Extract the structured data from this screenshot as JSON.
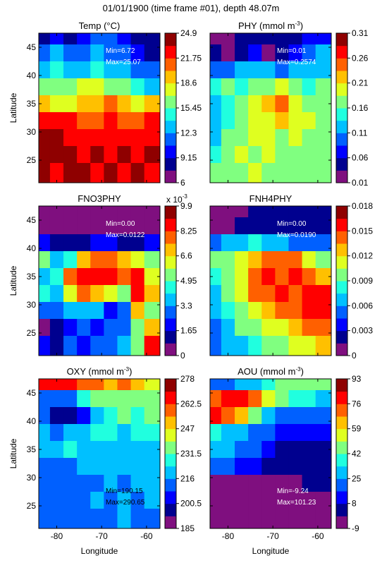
{
  "figure": {
    "title": "01/01/1900 (time frame #01), depth 48.07m",
    "xlabel": "Longitude",
    "ylabel": "Latitude"
  },
  "colors": {
    "colormap": [
      "#7f0f7f",
      "#00008f",
      "#0000ff",
      "#0060ff",
      "#00c0ff",
      "#20ffdf",
      "#80ff80",
      "#dfff20",
      "#ffc000",
      "#ff6000",
      "#ff0000",
      "#8f0000"
    ]
  },
  "chart_data": [
    {
      "type": "heatmap",
      "title": "Temp (°C)",
      "xlim": [
        -84,
        -57
      ],
      "ylim": [
        21,
        47.5
      ],
      "xticks": [
        "-80",
        "-70",
        "-60"
      ],
      "yticks": [
        "25",
        "30",
        "35",
        "40",
        "45"
      ],
      "colorbar": {
        "range": [
          6,
          24.9
        ],
        "ticks": [
          "24.9",
          "21.75",
          "18.6",
          "15.45",
          "12.3",
          "9.15",
          "6"
        ],
        "exponent": ""
      },
      "annotation": {
        "min": "Min=6.72",
        "max": "Max=25.07"
      },
      "grid_lat": [
        47,
        44,
        41,
        38,
        35,
        32,
        29,
        26,
        23
      ],
      "grid_lon": [
        -83,
        -80,
        -77,
        -74,
        -71,
        -68,
        -65,
        -62,
        -59
      ],
      "values": [
        [
          0.1,
          0.2,
          0.15,
          0.2,
          0.3,
          0.25,
          0.2,
          0.15,
          0.1
        ],
        [
          0.25,
          0.35,
          0.3,
          0.3,
          0.35,
          0.3,
          0.25,
          0.2,
          0.15
        ],
        [
          0.4,
          0.45,
          0.35,
          0.4,
          0.45,
          0.4,
          0.35,
          0.3,
          0.25
        ],
        [
          0.5,
          0.55,
          0.55,
          0.6,
          0.6,
          0.55,
          0.55,
          0.45,
          0.4
        ],
        [
          0.7,
          0.65,
          0.65,
          0.7,
          0.7,
          0.75,
          0.7,
          0.65,
          0.7
        ],
        [
          0.9,
          0.85,
          0.85,
          0.8,
          0.8,
          0.85,
          0.8,
          0.8,
          0.85
        ],
        [
          0.95,
          0.95,
          0.9,
          0.9,
          0.85,
          0.9,
          0.9,
          0.85,
          0.9
        ],
        [
          0.95,
          0.95,
          0.95,
          0.9,
          0.95,
          0.9,
          0.95,
          0.9,
          0.95
        ],
        [
          0.95,
          0.9,
          0.95,
          0.95,
          0.9,
          0.95,
          0.9,
          0.95,
          0.85
        ]
      ]
    },
    {
      "type": "heatmap",
      "title": "PHY (mmol m",
      "title_sup": "-3",
      "title_end": ")",
      "xlim": [
        -84,
        -57
      ],
      "ylim": [
        21,
        47.5
      ],
      "xticks": [
        "-80",
        "-70",
        "-60"
      ],
      "yticks": [
        "25",
        "30",
        "35",
        "40",
        "45"
      ],
      "colorbar": {
        "range": [
          0.01,
          0.31
        ],
        "ticks": [
          "0.31",
          "0.26",
          "0.21",
          "0.16",
          "0.11",
          "0.06",
          "0.01"
        ],
        "exponent": ""
      },
      "annotation": {
        "min": "Min=0.01",
        "max": "Max=0.2574"
      },
      "grid_lat": [
        47,
        44,
        41,
        38,
        35,
        32,
        29,
        26,
        23
      ],
      "grid_lon": [
        -83,
        -80,
        -77,
        -74,
        -71,
        -68,
        -65,
        -62,
        -59
      ],
      "values": [
        [
          0.05,
          0.05,
          0.1,
          0.15,
          0.1,
          0.1,
          0.15,
          0.2,
          0.2
        ],
        [
          0.1,
          0.05,
          0.1,
          0.2,
          0.05,
          0.1,
          0.2,
          0.3,
          0.35
        ],
        [
          0.25,
          0.3,
          0.35,
          0.4,
          0.35,
          0.3,
          0.35,
          0.4,
          0.35
        ],
        [
          0.45,
          0.5,
          0.45,
          0.5,
          0.55,
          0.6,
          0.55,
          0.45,
          0.5
        ],
        [
          0.4,
          0.45,
          0.55,
          0.6,
          0.7,
          0.75,
          0.65,
          0.55,
          0.5
        ],
        [
          0.35,
          0.45,
          0.55,
          0.6,
          0.65,
          0.7,
          0.65,
          0.6,
          0.55
        ],
        [
          0.4,
          0.5,
          0.55,
          0.6,
          0.6,
          0.55,
          0.6,
          0.55,
          0.5
        ],
        [
          0.45,
          0.55,
          0.6,
          0.55,
          0.6,
          0.55,
          0.5,
          0.55,
          0.5
        ],
        [
          0.5,
          0.55,
          0.55,
          0.6,
          0.55,
          0.5,
          0.55,
          0.5,
          0.55
        ]
      ]
    },
    {
      "type": "heatmap",
      "title": "FNO3PHY",
      "xlim": [
        -84,
        -57
      ],
      "ylim": [
        21,
        47.5
      ],
      "xticks": [
        "-80",
        "-70",
        "-60"
      ],
      "yticks": [
        "25",
        "30",
        "35",
        "40",
        "45"
      ],
      "colorbar": {
        "range": [
          0,
          9.9
        ],
        "ticks": [
          "9.9",
          "8.25",
          "6.6",
          "4.95",
          "3.3",
          "1.65",
          "0"
        ],
        "exponent": "x 10",
        "exponent_sup": "-3"
      },
      "annotation": {
        "min": "Min=0.00",
        "max": "Max=0.0122"
      },
      "grid_lat": [
        47,
        44,
        41,
        38,
        35,
        32,
        29,
        26,
        23
      ],
      "grid_lon": [
        -83,
        -80,
        -77,
        -74,
        -71,
        -68,
        -65,
        -62,
        -59
      ],
      "values": [
        [
          0.02,
          0.02,
          0.03,
          0.05,
          0.05,
          0.05,
          0.05,
          0.05,
          0.05
        ],
        [
          0.02,
          0.02,
          0.02,
          0.05,
          0.05,
          0.05,
          0.05,
          0.05,
          0.05
        ],
        [
          0.2,
          0.15,
          0.1,
          0.15,
          0.2,
          0.2,
          0.15,
          0.15,
          0.2
        ],
        [
          0.5,
          0.4,
          0.45,
          0.7,
          0.8,
          0.75,
          0.7,
          0.6,
          0.5
        ],
        [
          0.4,
          0.45,
          0.8,
          0.9,
          0.85,
          0.9,
          0.8,
          0.85,
          0.6
        ],
        [
          0.45,
          0.35,
          0.6,
          0.75,
          0.7,
          0.6,
          0.55,
          0.85,
          0.7
        ],
        [
          0.3,
          0.25,
          0.35,
          0.4,
          0.35,
          0.2,
          0.3,
          0.7,
          0.55
        ],
        [
          0.05,
          0.1,
          0.2,
          0.25,
          0.2,
          0.25,
          0.3,
          0.5,
          0.7
        ],
        [
          0.2,
          0.15,
          0.25,
          0.2,
          0.3,
          0.25,
          0.4,
          0.55,
          0.85
        ]
      ]
    },
    {
      "type": "heatmap",
      "title": "FNH4PHY",
      "xlim": [
        -84,
        -57
      ],
      "ylim": [
        21,
        47.5
      ],
      "xticks": [
        "-80",
        "-70",
        "-60"
      ],
      "yticks": [
        "25",
        "30",
        "35",
        "40",
        "45"
      ],
      "colorbar": {
        "range": [
          0,
          0.018
        ],
        "ticks": [
          "0.018",
          "0.015",
          "0.012",
          "0.009",
          "0.006",
          "0.003",
          "0"
        ],
        "exponent": ""
      },
      "annotation": {
        "min": "Min=0.00",
        "max": "Max=0.0190"
      },
      "grid_lat": [
        47,
        44,
        41,
        38,
        35,
        32,
        29,
        26,
        23
      ],
      "grid_lon": [
        -83,
        -80,
        -77,
        -74,
        -71,
        -68,
        -65,
        -62,
        -59
      ],
      "values": [
        [
          0.02,
          0.05,
          0.05,
          0.1,
          0.1,
          0.1,
          0.1,
          0.1,
          0.1
        ],
        [
          0.05,
          0.05,
          0.1,
          0.15,
          0.1,
          0.1,
          0.1,
          0.1,
          0.1
        ],
        [
          0.3,
          0.35,
          0.4,
          0.45,
          0.4,
          0.35,
          0.3,
          0.3,
          0.3
        ],
        [
          0.5,
          0.55,
          0.6,
          0.7,
          0.75,
          0.8,
          0.75,
          0.65,
          0.55
        ],
        [
          0.45,
          0.55,
          0.65,
          0.8,
          0.85,
          0.8,
          0.85,
          0.8,
          0.7
        ],
        [
          0.4,
          0.5,
          0.6,
          0.75,
          0.8,
          0.85,
          0.8,
          0.85,
          0.9
        ],
        [
          0.35,
          0.45,
          0.55,
          0.65,
          0.7,
          0.75,
          0.8,
          0.85,
          0.9
        ],
        [
          0.3,
          0.4,
          0.5,
          0.55,
          0.6,
          0.65,
          0.7,
          0.75,
          0.8
        ],
        [
          0.25,
          0.35,
          0.4,
          0.45,
          0.5,
          0.55,
          0.6,
          0.65,
          0.7
        ]
      ]
    },
    {
      "type": "heatmap",
      "title": "OXY (mmol m",
      "title_sup": "-3",
      "title_end": ")",
      "xlim": [
        -84,
        -57
      ],
      "ylim": [
        21,
        47.5
      ],
      "xticks": [
        "-80",
        "-70",
        "-60"
      ],
      "yticks": [
        "25",
        "30",
        "35",
        "40",
        "45"
      ],
      "colorbar": {
        "range": [
          185,
          278
        ],
        "ticks": [
          "278",
          "262.5",
          "247",
          "231.5",
          "216",
          "200.5",
          "185"
        ],
        "exponent": ""
      },
      "annotation": {
        "min": "Min=190.15",
        "max": "Max=290.65"
      },
      "grid_lat": [
        47,
        44,
        41,
        38,
        35,
        32,
        29,
        26,
        23
      ],
      "grid_lon": [
        -83,
        -80,
        -77,
        -74,
        -71,
        -68,
        -65,
        -62,
        -59
      ],
      "values": [
        [
          0.85,
          0.9,
          0.85,
          0.8,
          0.75,
          0.7,
          0.75,
          0.7,
          0.65
        ],
        [
          0.3,
          0.25,
          0.3,
          0.45,
          0.55,
          0.5,
          0.55,
          0.5,
          0.55
        ],
        [
          0.25,
          0.15,
          0.1,
          0.2,
          0.4,
          0.45,
          0.5,
          0.45,
          0.5
        ],
        [
          0.35,
          0.3,
          0.35,
          0.4,
          0.45,
          0.45,
          0.4,
          0.45,
          0.45
        ],
        [
          0.4,
          0.4,
          0.45,
          0.4,
          0.4,
          0.35,
          0.4,
          0.4,
          0.35
        ],
        [
          0.3,
          0.3,
          0.3,
          0.35,
          0.35,
          0.35,
          0.35,
          0.35,
          0.35
        ],
        [
          0.3,
          0.3,
          0.3,
          0.3,
          0.3,
          0.35,
          0.3,
          0.35,
          0.35
        ],
        [
          0.3,
          0.3,
          0.3,
          0.3,
          0.35,
          0.3,
          0.35,
          0.3,
          0.35
        ],
        [
          0.3,
          0.3,
          0.3,
          0.3,
          0.3,
          0.3,
          0.35,
          0.3,
          0.3
        ]
      ]
    },
    {
      "type": "heatmap",
      "title": "AOU (mmol m",
      "title_sup": "-3",
      "title_end": ")",
      "xlim": [
        -84,
        -57
      ],
      "ylim": [
        21,
        47.5
      ],
      "xticks": [
        "-80",
        "-70",
        "-60"
      ],
      "yticks": [
        "25",
        "30",
        "35",
        "40",
        "45"
      ],
      "colorbar": {
        "range": [
          -9,
          93
        ],
        "ticks": [
          "93",
          "76",
          "59",
          "42",
          "25",
          "8",
          "-9"
        ],
        "exponent": ""
      },
      "annotation": {
        "min": "Min=-9.24",
        "max": "Max=101.23"
      },
      "grid_lat": [
        47,
        44,
        41,
        38,
        35,
        32,
        29,
        26,
        23
      ],
      "grid_lon": [
        -83,
        -80,
        -77,
        -74,
        -71,
        -68,
        -65,
        -62,
        -59
      ],
      "values": [
        [
          0.25,
          0.3,
          0.35,
          0.4,
          0.45,
          0.5,
          0.5,
          0.55,
          0.5
        ],
        [
          0.8,
          0.9,
          0.85,
          0.75,
          0.6,
          0.5,
          0.45,
          0.45,
          0.4
        ],
        [
          0.85,
          0.8,
          0.7,
          0.5,
          0.4,
          0.3,
          0.25,
          0.25,
          0.3
        ],
        [
          0.45,
          0.4,
          0.35,
          0.3,
          0.25,
          0.2,
          0.2,
          0.2,
          0.2
        ],
        [
          0.35,
          0.35,
          0.3,
          0.25,
          0.2,
          0.15,
          0.15,
          0.15,
          0.15
        ],
        [
          0.25,
          0.25,
          0.2,
          0.2,
          0.15,
          0.15,
          0.15,
          0.15,
          0.15
        ],
        [
          0.05,
          0.05,
          0.05,
          0.05,
          0.05,
          0.05,
          0.05,
          0.1,
          0.1
        ],
        [
          0.0,
          0.0,
          0.0,
          0.0,
          0.0,
          0.0,
          0.0,
          0.0,
          0.0
        ],
        [
          0.0,
          0.0,
          0.0,
          0.0,
          0.0,
          0.0,
          0.0,
          0.0,
          0.0
        ]
      ]
    }
  ]
}
